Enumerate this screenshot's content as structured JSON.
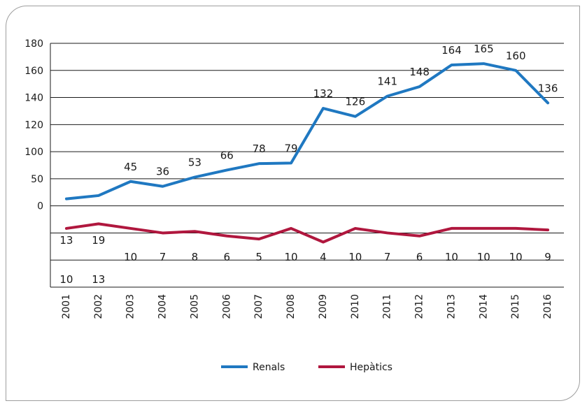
{
  "chart_data": {
    "type": "line",
    "title": "",
    "xlabel": "",
    "ylabel": "",
    "categories": [
      "2001",
      "2002",
      "2003",
      "2004",
      "2005",
      "2006",
      "2007",
      "2008",
      "2009",
      "2010",
      "2011",
      "2012",
      "2013",
      "2014",
      "2015",
      "2016"
    ],
    "y_tick_labels": [
      "0",
      "50",
      "100",
      "120",
      "140",
      "160",
      "180"
    ],
    "grid": true,
    "legend_position": "bottom",
    "series": [
      {
        "name": "Renals",
        "color": "#1f78c1",
        "values": [
          13,
          19,
          45,
          36,
          53,
          66,
          78,
          79,
          132,
          126,
          141,
          148,
          164,
          165,
          160,
          136
        ]
      },
      {
        "name": "Hepàtics",
        "color": "#b0173e",
        "values": [
          10,
          13,
          10,
          7,
          8,
          6,
          5,
          10,
          4,
          10,
          7,
          6,
          10,
          10,
          10,
          9
        ]
      }
    ]
  }
}
